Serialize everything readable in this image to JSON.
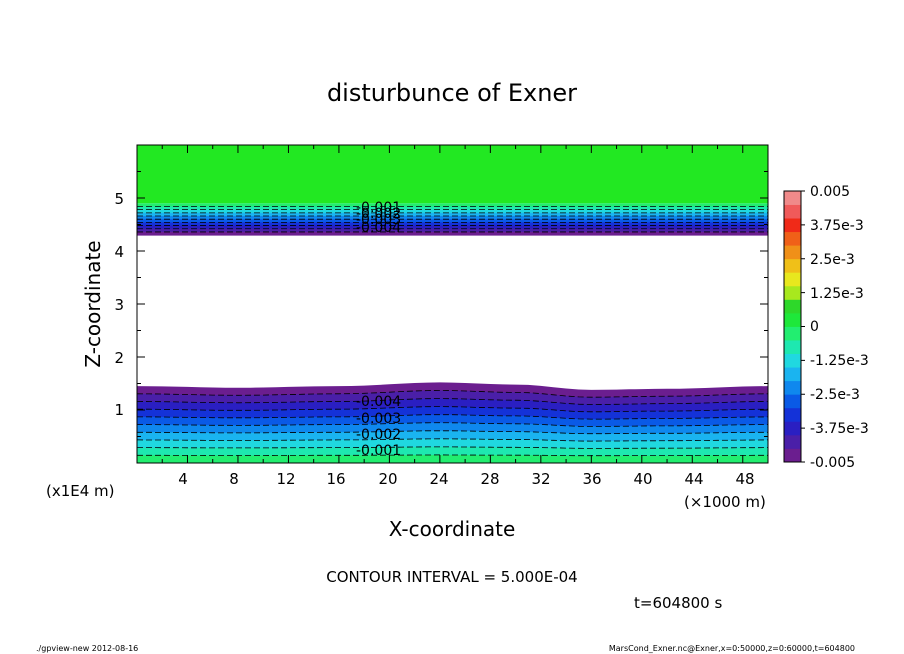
{
  "chart_data": {
    "type": "heatmap",
    "title": "disturbunce of Exner",
    "xlabel": "X-coordinate",
    "ylabel": "Z-coordinate",
    "x_units": "(×1000 m)",
    "y_units": "(x1E4 m)",
    "xlim": [
      0,
      50
    ],
    "ylim": [
      0,
      6
    ],
    "x_ticks": [
      "4",
      "8",
      "12",
      "16",
      "20",
      "24",
      "28",
      "32",
      "36",
      "40",
      "44",
      "48"
    ],
    "y_ticks": [
      "1",
      "2",
      "3",
      "4",
      "5"
    ],
    "colorbar": {
      "range": [
        -0.005,
        0.005
      ],
      "tick_labels": [
        "0.005",
        "3.75e-3",
        "2.5e-3",
        "1.25e-3",
        "0",
        "-1.25e-3",
        "-2.5e-3",
        "-3.75e-3",
        "-0.005"
      ],
      "colors": [
        "#6b1e8f",
        "#4a1fa8",
        "#2a1fc2",
        "#1432d8",
        "#0a5ae6",
        "#0f88ee",
        "#1ab4f0",
        "#20d8e0",
        "#1ee8b0",
        "#22ee70",
        "#1ee83a",
        "#2ed82a",
        "#a8e81e",
        "#e8e81e",
        "#f0c018",
        "#f09018",
        "#f06018",
        "#f02a18",
        "#f05a5a",
        "#f08a8a"
      ]
    },
    "upper_band": {
      "z_bottom": 4.3,
      "z_top": 4.9,
      "min": -0.005,
      "max": 0.0
    },
    "lower_band": {
      "z_top_profile": [
        [
          0,
          1.45
        ],
        [
          8,
          1.42
        ],
        [
          16,
          1.45
        ],
        [
          24,
          1.52
        ],
        [
          30,
          1.48
        ],
        [
          36,
          1.38
        ],
        [
          42,
          1.4
        ],
        [
          50,
          1.45
        ]
      ]
    },
    "contour_labels_upper": [
      "-0.001",
      "-0.002",
      "-0.003",
      "-0.004"
    ],
    "contour_labels_lower": [
      "-0.004",
      "-0.003",
      "-0.002",
      "-0.001"
    ],
    "contour_interval": "CONTOUR INTERVAL = 5.000E-04",
    "time": "t=604800  s",
    "footer_left": "./gpview-new   2012-08-16",
    "footer_right": "MarsCond_Exner.nc@Exner,x=0:50000,z=0:60000,t=604800"
  }
}
